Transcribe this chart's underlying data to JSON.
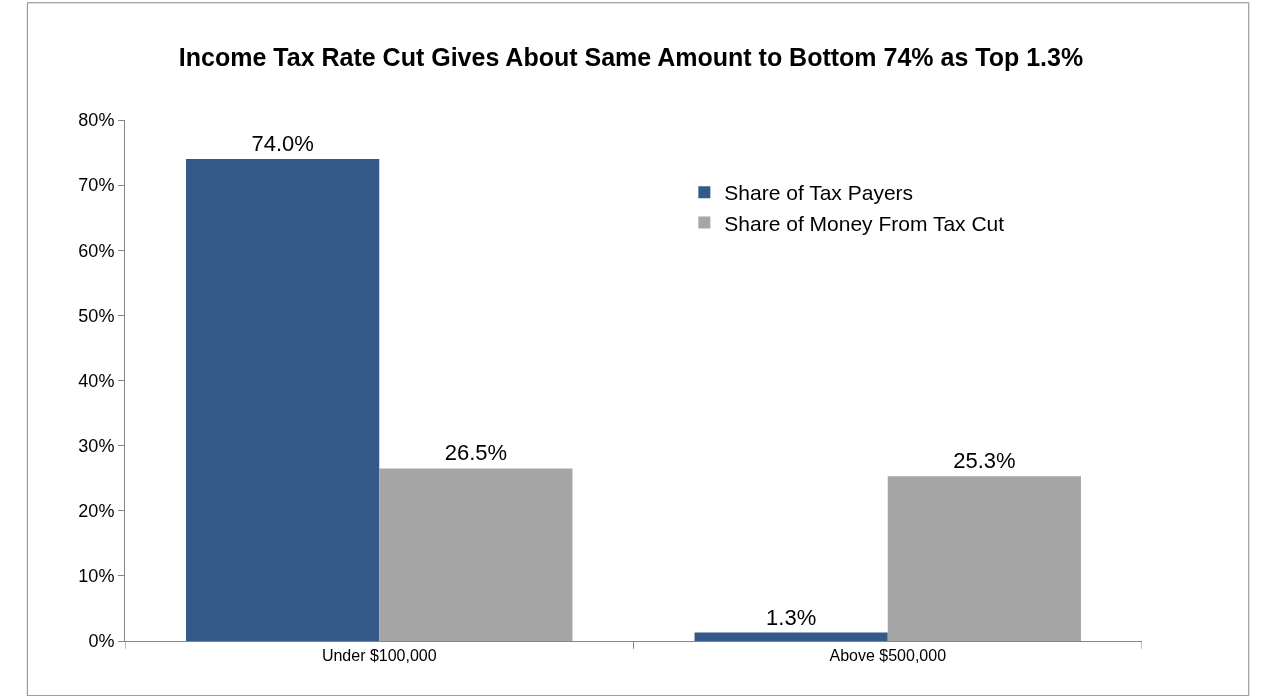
{
  "chart_data": {
    "type": "bar",
    "title": "Income Tax Rate Cut Gives About Same Amount to Bottom 74% as Top 1.3%",
    "categories": [
      "Under $100,000",
      "Above $500,000"
    ],
    "series": [
      {
        "name": "Share of Tax Payers",
        "color": "#355a8a",
        "values": [
          74.0,
          1.3
        ],
        "value_labels": [
          "74.0%",
          "1.3%"
        ]
      },
      {
        "name": "Share of Money From Tax Cut",
        "color": "#a6a6a6",
        "values": [
          26.5,
          25.3
        ],
        "value_labels": [
          "26.5%",
          "25.3%"
        ]
      }
    ],
    "ylim": [
      0,
      80
    ],
    "yticks": [
      {
        "value": 0,
        "label": "0%"
      },
      {
        "value": 10,
        "label": "10%"
      },
      {
        "value": 20,
        "label": "20%"
      },
      {
        "value": 30,
        "label": "30%"
      },
      {
        "value": 40,
        "label": "40%"
      },
      {
        "value": 50,
        "label": "50%"
      },
      {
        "value": 60,
        "label": "60%"
      },
      {
        "value": 70,
        "label": "70%"
      },
      {
        "value": 80,
        "label": "80%"
      }
    ],
    "grid": false,
    "legend": "top right"
  }
}
